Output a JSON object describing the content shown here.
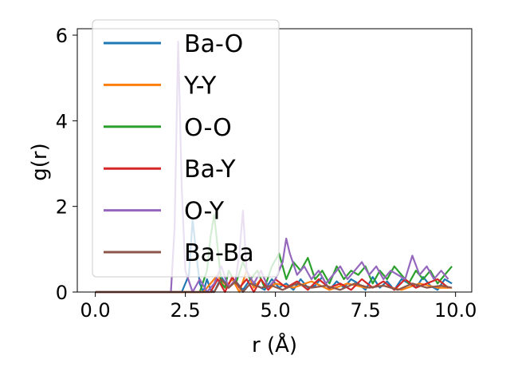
{
  "chart_data": {
    "type": "line",
    "title": "",
    "xlabel": "r (Å)",
    "ylabel": "g(r)",
    "xlim": [
      -0.5,
      10.45
    ],
    "ylim": [
      0,
      6.15
    ],
    "xticks": [
      0.0,
      2.5,
      5.0,
      7.5,
      10.0
    ],
    "xtick_labels": [
      "0.0",
      "2.5",
      "5.0",
      "7.5",
      "10.0"
    ],
    "yticks": [
      0,
      2,
      4,
      6
    ],
    "ytick_labels": [
      "0",
      "2",
      "4",
      "6"
    ],
    "grid": false,
    "legend_position": "upper-left",
    "series": [
      {
        "name": "Ba-O",
        "color": "#1f77b4",
        "x": [
          0,
          2.4,
          2.6,
          2.7,
          2.8,
          2.9,
          3.0,
          3.1,
          3.2,
          3.3,
          3.5,
          3.7,
          3.9,
          4.1,
          4.3,
          4.5,
          4.7,
          4.9,
          5.1,
          5.3,
          5.5,
          5.7,
          5.9,
          6.1,
          6.3,
          6.5,
          6.7,
          6.9,
          7.1,
          7.3,
          7.5,
          7.7,
          7.9,
          8.1,
          8.3,
          8.5,
          8.7,
          8.9,
          9.1,
          9.3,
          9.5,
          9.7,
          9.9
        ],
        "values": [
          0,
          0,
          0.4,
          1.7,
          0.9,
          0.2,
          0.0,
          0.3,
          0.05,
          0.0,
          0.35,
          0.1,
          0.25,
          0.05,
          0.3,
          0.15,
          0.05,
          0.3,
          0.1,
          0.2,
          0.05,
          0.3,
          0.1,
          0.15,
          0.35,
          0.05,
          0.25,
          0.1,
          0.3,
          0.2,
          0.05,
          0.35,
          0.1,
          0.25,
          0.05,
          0.3,
          0.2,
          0.1,
          0.35,
          0.15,
          0.05,
          0.3,
          0.2
        ]
      },
      {
        "name": "Y-Y",
        "color": "#ff7f0e",
        "x": [
          0,
          3.0,
          3.4,
          3.6,
          3.8,
          4.0,
          4.2,
          4.4,
          4.6,
          4.8,
          5.0,
          5.5,
          6.0,
          6.5,
          7.0,
          7.5,
          8.0,
          8.5,
          9.0,
          9.5,
          9.9
        ],
        "values": [
          0,
          0,
          0.4,
          0.1,
          0.3,
          0.0,
          0.5,
          0.1,
          0.3,
          0.05,
          0.2,
          0.1,
          0.25,
          0.05,
          0.2,
          0.1,
          0.15,
          0.05,
          0.2,
          0.1,
          0.1
        ]
      },
      {
        "name": "O-O",
        "color": "#2ca02c",
        "x": [
          0,
          2.9,
          3.1,
          3.2,
          3.3,
          3.4,
          3.5,
          3.6,
          3.7,
          3.9,
          4.1,
          4.3,
          4.5,
          4.7,
          4.9,
          5.1,
          5.3,
          5.5,
          5.7,
          5.9,
          6.1,
          6.3,
          6.5,
          6.7,
          6.9,
          7.1,
          7.3,
          7.5,
          7.7,
          7.9,
          8.1,
          8.3,
          8.5,
          8.7,
          8.9,
          9.1,
          9.3,
          9.5,
          9.7,
          9.9
        ],
        "values": [
          0,
          0,
          0.5,
          1.3,
          1.8,
          1.0,
          0.2,
          0.1,
          0.5,
          0.2,
          0.7,
          0.3,
          0.5,
          0.1,
          0.6,
          0.9,
          0.3,
          0.7,
          0.5,
          0.8,
          0.3,
          0.5,
          0.2,
          0.6,
          0.3,
          0.5,
          0.4,
          0.6,
          0.2,
          0.5,
          0.3,
          0.6,
          0.4,
          0.2,
          0.5,
          0.3,
          0.5,
          0.2,
          0.4,
          0.6
        ]
      },
      {
        "name": "Ba-Y",
        "color": "#d62728",
        "x": [
          0,
          3.2,
          3.4,
          3.6,
          3.8,
          4.0,
          4.2,
          4.4,
          4.6,
          4.8,
          5.0,
          5.3,
          5.6,
          5.9,
          6.2,
          6.5,
          6.8,
          7.1,
          7.4,
          7.7,
          8.0,
          8.3,
          8.6,
          8.9,
          9.2,
          9.5,
          9.8
        ],
        "values": [
          0,
          0,
          0.3,
          0.0,
          0.35,
          0.1,
          0.3,
          0.0,
          0.3,
          0.05,
          0.3,
          0.1,
          0.25,
          0.05,
          0.3,
          0.1,
          0.2,
          0.05,
          0.3,
          0.1,
          0.25,
          0.05,
          0.3,
          0.1,
          0.2,
          0.3,
          0.1
        ]
      },
      {
        "name": "O-Y",
        "color": "#9467bd",
        "x": [
          0,
          2.1,
          2.2,
          2.3,
          2.4,
          2.5,
          2.7,
          2.9,
          3.1,
          3.3,
          3.5,
          3.7,
          3.9,
          4.0,
          4.1,
          4.2,
          4.4,
          4.6,
          4.8,
          5.0,
          5.2,
          5.3,
          5.4,
          5.6,
          5.8,
          6.0,
          6.2,
          6.4,
          6.6,
          6.8,
          7.0,
          7.2,
          7.4,
          7.6,
          7.8,
          8.0,
          8.2,
          8.4,
          8.6,
          8.8,
          9.0,
          9.2,
          9.4,
          9.6,
          9.8
        ],
        "values": [
          0,
          0,
          1.5,
          5.85,
          2.4,
          0.5,
          0.0,
          0.3,
          0.0,
          0.2,
          0.6,
          0.1,
          0.3,
          0.9,
          1.9,
          0.5,
          0.2,
          0.5,
          0.1,
          0.3,
          0.7,
          1.25,
          0.9,
          0.4,
          0.6,
          0.3,
          0.5,
          0.2,
          0.4,
          0.6,
          0.3,
          0.5,
          0.7,
          0.4,
          0.6,
          0.3,
          0.5,
          0.4,
          0.3,
          0.85,
          0.4,
          0.6,
          0.3,
          0.5,
          0.3
        ]
      },
      {
        "name": "Ba-Ba",
        "color": "#8c564b",
        "x": [
          0,
          3.3,
          3.5,
          3.7,
          3.9,
          4.1,
          4.3,
          4.6,
          4.9,
          5.2,
          5.6,
          6.0,
          6.4,
          6.8,
          7.2,
          7.6,
          8.0,
          8.4,
          8.8,
          9.2,
          9.6,
          9.9
        ],
        "values": [
          0,
          0,
          0.3,
          0.1,
          0.25,
          0.0,
          0.2,
          0.1,
          0.15,
          0.05,
          0.2,
          0.1,
          0.15,
          0.05,
          0.2,
          0.1,
          0.15,
          0.05,
          0.2,
          0.1,
          0.15,
          0.1
        ]
      }
    ]
  }
}
